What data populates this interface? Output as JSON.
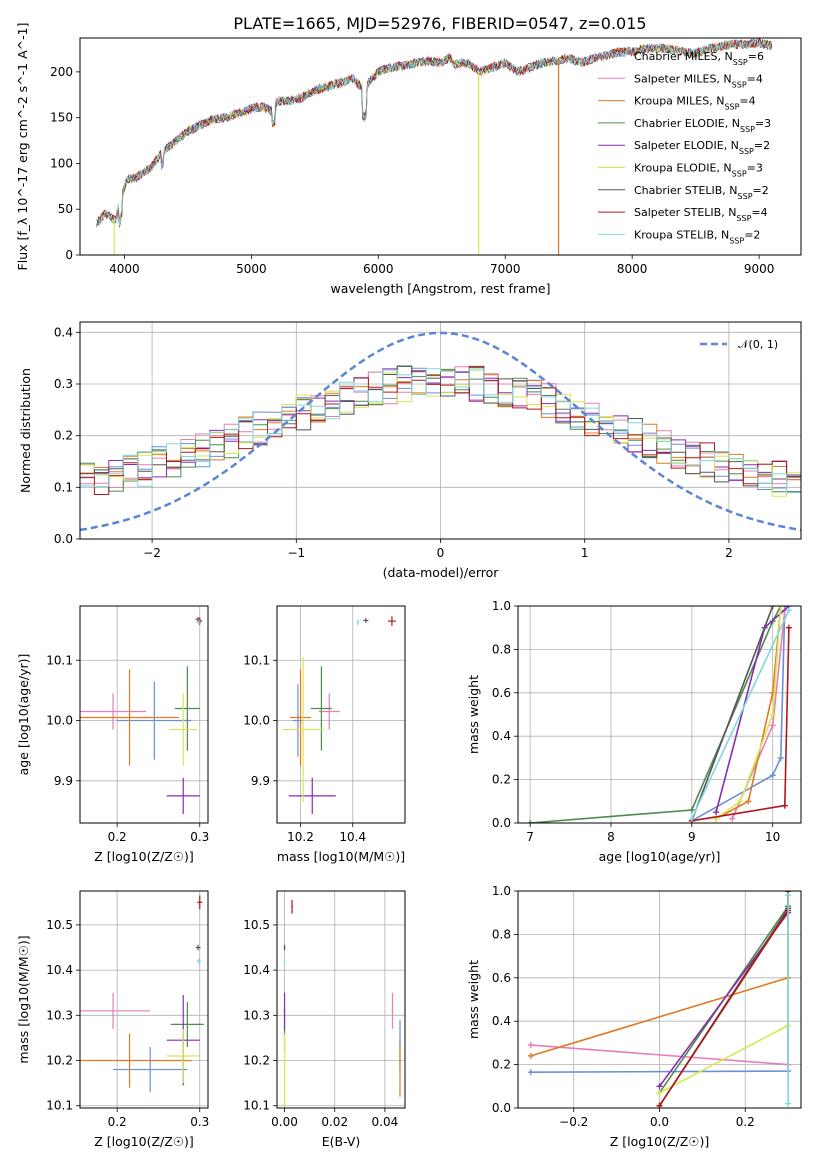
{
  "figure": {
    "title": "PLATE=1665, MJD=52976, FIBERID=0547, z=0.015"
  },
  "colors": {
    "Chabrier MILES": "#6a8fd8",
    "Salpeter MILES": "#e87db8",
    "Kroupa MILES": "#e07a22",
    "Chabrier ELODIE": "#4f8a4f",
    "Salpeter ELODIE": "#8b2bb0",
    "Kroupa ELODIE": "#d6e84e",
    "Chabrier STELIB": "#555555",
    "Salpeter STELIB": "#b01818",
    "Kroupa STELIB": "#80d8e0"
  },
  "chart_data": [
    {
      "id": "spectrum",
      "type": "line",
      "title": "PLATE=1665, MJD=52976, FIBERID=0547, z=0.015",
      "xlabel": "wavelength [Angstrom, rest frame]",
      "ylabel": "Flux [f_λ 10^-17 erg cm^-2 s^-1 A^-1]",
      "xlim": [
        3650,
        9330
      ],
      "ylim": [
        0,
        237
      ],
      "xticks": [
        "4000",
        "5000",
        "6000",
        "7000",
        "8000",
        "9000"
      ],
      "yticks": [
        "0",
        "50",
        "100",
        "150",
        "200"
      ],
      "grid": false,
      "legend_position": "right",
      "legend": [
        {
          "name": "Chabrier MILES",
          "nssp": "6"
        },
        {
          "name": "Salpeter MILES",
          "nssp": "4"
        },
        {
          "name": "Kroupa MILES",
          "nssp": "4"
        },
        {
          "name": "Chabrier ELODIE",
          "nssp": "3"
        },
        {
          "name": "Salpeter ELODIE",
          "nssp": "2"
        },
        {
          "name": "Kroupa ELODIE",
          "nssp": "3"
        },
        {
          "name": "Chabrier STELIB",
          "nssp": "2"
        },
        {
          "name": "Salpeter STELIB",
          "nssp": "4"
        },
        {
          "name": "Kroupa STELIB",
          "nssp": "2"
        }
      ],
      "spectrum_x": [
        3780,
        3850,
        3930,
        3970,
        4020,
        4100,
        4200,
        4300,
        4400,
        4500,
        4600,
        4700,
        4800,
        4900,
        5000,
        5100,
        5180,
        5200,
        5300,
        5400,
        5500,
        5600,
        5700,
        5800,
        5890,
        5920,
        6000,
        6100,
        6200,
        6300,
        6400,
        6500,
        6563,
        6600,
        6700,
        6800,
        6900,
        7000,
        7100,
        7200,
        7300,
        7400,
        7500,
        7600,
        7700,
        7800,
        7900,
        8000,
        8100,
        8200,
        8300,
        8400,
        8500,
        8600,
        8700,
        8800,
        8900,
        9000,
        9100
      ],
      "spectrum_y": [
        35,
        45,
        38,
        60,
        82,
        85,
        95,
        112,
        124,
        135,
        142,
        148,
        150,
        155,
        160,
        162,
        155,
        168,
        168,
        172,
        180,
        184,
        188,
        193,
        180,
        188,
        200,
        205,
        207,
        210,
        212,
        210,
        216,
        208,
        210,
        200,
        205,
        210,
        200,
        205,
        210,
        212,
        215,
        210,
        215,
        218,
        222,
        222,
        225,
        226,
        225,
        222,
        220,
        225,
        228,
        230,
        230,
        232,
        228
      ],
      "dropouts": [
        {
          "model": "Kroupa ELODIE",
          "x": 3920,
          "y_to": 0
        },
        {
          "model": "Kroupa ELODIE",
          "x": 6790,
          "y_to": 0
        },
        {
          "model": "Kroupa MILES",
          "x": 7420,
          "y_to": 0
        }
      ]
    },
    {
      "id": "residuals",
      "type": "histogram",
      "xlabel": "(data-model)/error",
      "ylabel": "Normed distribution",
      "xlim": [
        -2.5,
        2.5
      ],
      "ylim": [
        0,
        0.42
      ],
      "xticks": [
        "−2",
        "−1",
        "0",
        "1",
        "2"
      ],
      "yticks": [
        "0.0",
        "0.1",
        "0.2",
        "0.3",
        "0.4"
      ],
      "grid": true,
      "legend_position": "upper right",
      "legend": [
        {
          "name": "𝒩(0, 1)",
          "style": "dashed"
        }
      ],
      "reference_curve": "standard normal density"
    },
    {
      "id": "age-vs-Z",
      "type": "errorbar",
      "xlabel": "Z [log10(Z/Z☉)]",
      "ylabel": "age [log10(age/yr)]",
      "xlim": [
        0.155,
        0.31
      ],
      "ylim": [
        9.83,
        10.19
      ],
      "xticks": [
        "0.2",
        "0.3"
      ],
      "yticks": [
        "9.9",
        "10.0",
        "10.1"
      ],
      "grid": true,
      "points": [
        {
          "model": "Chabrier MILES",
          "x": 0.245,
          "y": 10.0,
          "xerr": 0.045,
          "yerr": 0.065
        },
        {
          "model": "Salpeter MILES",
          "x": 0.195,
          "y": 10.015,
          "xerr": 0.04,
          "yerr": 0.03
        },
        {
          "model": "Kroupa MILES",
          "x": 0.215,
          "y": 10.005,
          "xerr": 0.06,
          "yerr": 0.08
        },
        {
          "model": "Chabrier ELODIE",
          "x": 0.285,
          "y": 10.02,
          "xerr": 0.015,
          "yerr": 0.07
        },
        {
          "model": "Salpeter ELODIE",
          "x": 0.28,
          "y": 9.875,
          "xerr": 0.02,
          "yerr": 0.03
        },
        {
          "model": "Kroupa ELODIE",
          "x": 0.28,
          "y": 9.985,
          "xerr": 0.017,
          "yerr": 0.06
        },
        {
          "model": "Chabrier STELIB",
          "x": 0.298,
          "y": 10.168,
          "xerr": 0.003,
          "yerr": 0.004
        },
        {
          "model": "Salpeter STELIB",
          "x": 0.3,
          "y": 10.165,
          "xerr": 0.003,
          "yerr": 0.006
        },
        {
          "model": "Kroupa STELIB",
          "x": 0.299,
          "y": 10.163,
          "xerr": 0.003,
          "yerr": 0.005
        }
      ]
    },
    {
      "id": "age-vs-mass",
      "type": "errorbar",
      "xlabel": "mass [log10(M/M☉)]",
      "xlim": [
        10.11,
        10.6
      ],
      "ylim": [
        9.83,
        10.19
      ],
      "xticks": [
        "10.2",
        "10.4"
      ],
      "yticks": [
        "9.9",
        "10.0",
        "10.1"
      ],
      "grid": true,
      "points": [
        {
          "model": "Chabrier MILES",
          "x": 10.19,
          "y": 10.0,
          "xerr": 0.02,
          "yerr": 0.06
        },
        {
          "model": "Salpeter MILES",
          "x": 10.31,
          "y": 10.015,
          "xerr": 0.04,
          "yerr": 0.03
        },
        {
          "model": "Kroupa MILES",
          "x": 10.2,
          "y": 10.005,
          "xerr": 0.04,
          "yerr": 0.08
        },
        {
          "model": "Chabrier ELODIE",
          "x": 10.28,
          "y": 10.02,
          "xerr": 0.04,
          "yerr": 0.07
        },
        {
          "model": "Salpeter ELODIE",
          "x": 10.245,
          "y": 9.875,
          "xerr": 0.09,
          "yerr": 0.03
        },
        {
          "model": "Kroupa ELODIE",
          "x": 10.21,
          "y": 9.985,
          "xerr": 0.08,
          "yerr": 0.12
        },
        {
          "model": "Chabrier STELIB",
          "x": 10.45,
          "y": 10.166,
          "xerr": 0.01,
          "yerr": 0.004
        },
        {
          "model": "Salpeter STELIB",
          "x": 10.55,
          "y": 10.165,
          "xerr": 0.015,
          "yerr": 0.008
        },
        {
          "model": "Kroupa STELIB",
          "x": 10.42,
          "y": 10.163,
          "xerr": 0.005,
          "yerr": 0.005
        }
      ]
    },
    {
      "id": "massweight-vs-age",
      "type": "line",
      "xlabel": "age [log10(age/yr)]",
      "ylabel": "mass weight",
      "xlim": [
        6.85,
        10.35
      ],
      "ylim": [
        0,
        1
      ],
      "xticks": [
        "7",
        "8",
        "9",
        "10"
      ],
      "yticks": [
        "0.0",
        "0.2",
        "0.4",
        "0.6",
        "0.8",
        "1.0"
      ],
      "grid": true,
      "series": [
        {
          "name": "Chabrier MILES",
          "x": [
            9.0,
            10.0,
            10.1,
            10.15
          ],
          "y": [
            0.01,
            0.22,
            0.3,
            1.0
          ]
        },
        {
          "name": "Salpeter MILES",
          "x": [
            9.5,
            10.0,
            10.15
          ],
          "y": [
            0.02,
            0.45,
            0.98
          ]
        },
        {
          "name": "Kroupa MILES",
          "x": [
            9.3,
            9.7,
            10.0,
            10.1
          ],
          "y": [
            0.02,
            0.1,
            0.6,
            1.0
          ]
        },
        {
          "name": "Chabrier ELODIE",
          "x": [
            7.0,
            9.0,
            10.0,
            10.1
          ],
          "y": [
            0.0,
            0.06,
            0.93,
            1.0
          ]
        },
        {
          "name": "Salpeter ELODIE",
          "x": [
            9.3,
            9.9,
            10.2
          ],
          "y": [
            0.05,
            0.9,
            1.0
          ]
        },
        {
          "name": "Kroupa ELODIE",
          "x": [
            9.3,
            9.6,
            10.0,
            10.1
          ],
          "y": [
            0.02,
            0.1,
            0.5,
            1.0
          ]
        },
        {
          "name": "Chabrier STELIB",
          "x": [
            9.0,
            10.0
          ],
          "y": [
            0.01,
            1.0
          ]
        },
        {
          "name": "Salpeter STELIB",
          "x": [
            9.0,
            10.15,
            10.2
          ],
          "y": [
            0.01,
            0.08,
            0.9
          ]
        },
        {
          "name": "Kroupa STELIB",
          "x": [
            9.0,
            10.2
          ],
          "y": [
            0.02,
            0.98
          ]
        }
      ]
    },
    {
      "id": "mass-vs-Z",
      "type": "errorbar",
      "xlabel": "Z [log10(Z/Z☉)]",
      "ylabel": "mass [log10(M/M☉)]",
      "xlim": [
        0.155,
        0.31
      ],
      "ylim": [
        10.095,
        10.575
      ],
      "xticks": [
        "0.2",
        "0.3"
      ],
      "yticks": [
        "10.1",
        "10.2",
        "10.3",
        "10.4",
        "10.5"
      ],
      "grid": true,
      "points": [
        {
          "model": "Chabrier MILES",
          "x": 0.24,
          "y": 10.18,
          "xerr": 0.045,
          "yerr": 0.05
        },
        {
          "model": "Salpeter MILES",
          "x": 0.195,
          "y": 10.31,
          "xerr": 0.045,
          "yerr": 0.04
        },
        {
          "model": "Kroupa MILES",
          "x": 0.215,
          "y": 10.2,
          "xerr": 0.075,
          "yerr": 0.06
        },
        {
          "model": "Chabrier ELODIE",
          "x": 0.285,
          "y": 10.28,
          "xerr": 0.02,
          "yerr": 0.05
        },
        {
          "model": "Salpeter ELODIE",
          "x": 0.28,
          "y": 10.245,
          "xerr": 0.02,
          "yerr": 0.1
        },
        {
          "model": "Kroupa ELODIE",
          "x": 0.28,
          "y": 10.21,
          "xerr": 0.02,
          "yerr": 0.06
        },
        {
          "model": "Chabrier STELIB",
          "x": 0.298,
          "y": 10.45,
          "xerr": 0.003,
          "yerr": 0.006
        },
        {
          "model": "Salpeter STELIB",
          "x": 0.3,
          "y": 10.55,
          "xerr": 0.003,
          "yerr": 0.015
        },
        {
          "model": "Kroupa STELIB",
          "x": 0.299,
          "y": 10.42,
          "xerr": 0.003,
          "yerr": 0.006
        }
      ]
    },
    {
      "id": "mass-vs-ebv",
      "type": "errorbar",
      "xlabel": "E(B-V)",
      "xlim": [
        -0.003,
        0.048
      ],
      "ylim": [
        10.095,
        10.575
      ],
      "xticks": [
        "0.00",
        "0.02",
        "0.04"
      ],
      "yticks": [
        "10.1",
        "10.2",
        "10.3",
        "10.4",
        "10.5"
      ],
      "grid": true,
      "points": [
        {
          "model": "Chabrier MILES",
          "x": 0.046,
          "y": 10.24,
          "xerr": 0.0003,
          "yerr": 0.05
        },
        {
          "model": "Salpeter MILES",
          "x": 0.043,
          "y": 10.31,
          "xerr": 0.0003,
          "yerr": 0.04
        },
        {
          "model": "Kroupa MILES",
          "x": 0.046,
          "y": 10.18,
          "xerr": 0.0003,
          "yerr": 0.06
        },
        {
          "model": "Chabrier ELODIE",
          "x": 0.0,
          "y": 10.27,
          "xerr": 0.0003,
          "yerr": 0.05
        },
        {
          "model": "Salpeter ELODIE",
          "x": 0.0,
          "y": 10.31,
          "xerr": 0.0003,
          "yerr": 0.04
        },
        {
          "model": "Kroupa ELODIE",
          "x": 0.0,
          "y": 10.18,
          "xerr": 0.0003,
          "yerr": 0.08
        },
        {
          "model": "Chabrier STELIB",
          "x": 0.0,
          "y": 10.45,
          "xerr": 0.0003,
          "yerr": 0.006
        },
        {
          "model": "Salpeter STELIB",
          "x": 0.003,
          "y": 10.54,
          "xerr": 0.0003,
          "yerr": 0.015
        },
        {
          "model": "Kroupa STELIB",
          "x": 0.0,
          "y": 10.42,
          "xerr": 0.0003,
          "yerr": 0.006
        }
      ]
    },
    {
      "id": "massweight-vs-Z",
      "type": "line",
      "xlabel": "Z [log10(Z/Z☉)]",
      "ylabel": "mass weight",
      "xlim": [
        -0.33,
        0.33
      ],
      "ylim": [
        0,
        1
      ],
      "xticks": [
        "−0.2",
        "0.0",
        "0.2"
      ],
      "yticks": [
        "0.0",
        "0.2",
        "0.4",
        "0.6",
        "0.8",
        "1.0"
      ],
      "grid": true,
      "series": [
        {
          "name": "Chabrier MILES",
          "x": [
            -0.3,
            0.3,
            0.3
          ],
          "y": [
            0.165,
            0.17,
            1.0
          ]
        },
        {
          "name": "Salpeter MILES",
          "x": [
            -0.3,
            0.3,
            0.3
          ],
          "y": [
            0.29,
            0.2,
            1.0
          ]
        },
        {
          "name": "Kroupa MILES",
          "x": [
            -0.3,
            0.3,
            0.3
          ],
          "y": [
            0.24,
            0.6,
            1.0
          ]
        },
        {
          "name": "Chabrier ELODIE",
          "x": [
            0.0,
            0.3,
            0.3
          ],
          "y": [
            0.07,
            0.93,
            1.0
          ]
        },
        {
          "name": "Salpeter ELODIE",
          "x": [
            0.0,
            0.3,
            0.3
          ],
          "y": [
            0.1,
            0.9,
            1.0
          ]
        },
        {
          "name": "Kroupa ELODIE",
          "x": [
            0.0,
            0.3,
            0.3
          ],
          "y": [
            0.07,
            0.38,
            1.0
          ]
        },
        {
          "name": "Chabrier STELIB",
          "x": [
            0.0,
            0.3,
            0.3
          ],
          "y": [
            0.01,
            0.92,
            1.0
          ]
        },
        {
          "name": "Salpeter STELIB",
          "x": [
            0.0,
            0.3,
            0.3
          ],
          "y": [
            0.01,
            0.91,
            1.0
          ]
        },
        {
          "name": "Kroupa STELIB",
          "x": [
            0.3,
            0.3
          ],
          "y": [
            0.02,
            0.98
          ]
        }
      ]
    }
  ]
}
